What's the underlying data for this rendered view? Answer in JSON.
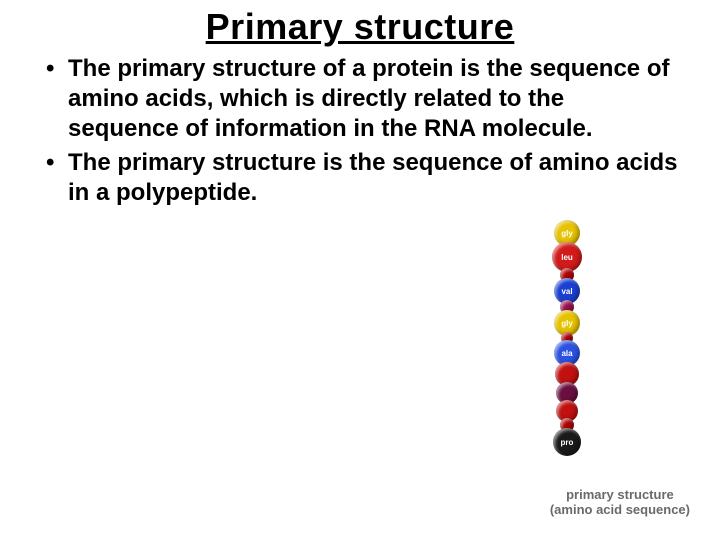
{
  "title": {
    "text": "Primary structure",
    "fontsize": 36,
    "color": "#000000"
  },
  "bullets": {
    "fontsize": 24,
    "color": "#000000",
    "items": [
      "The primary structure of a protein is the sequence of amino acids, which is directly related to the sequence of information in the RNA molecule.",
      "The primary structure is the sequence of amino acids in a polypeptide."
    ]
  },
  "figure": {
    "caption_line1": "primary structure",
    "caption_line2": "(amino acid sequence)",
    "caption_fontsize": 13,
    "caption_color": "#6a6a6a",
    "bead_label_fontsize": 8,
    "beads": [
      {
        "label": "gly",
        "color": "#e6c200",
        "size": 26
      },
      {
        "label": "leu",
        "color": "#d11a1a",
        "size": 30
      },
      {
        "label": "",
        "color": "#b00000",
        "size": 14
      },
      {
        "label": "val",
        "color": "#1a3fd1",
        "size": 26
      },
      {
        "label": "",
        "color": "#9a0f4f",
        "size": 14
      },
      {
        "label": "gly",
        "color": "#e6c200",
        "size": 26
      },
      {
        "label": "",
        "color": "#b00000",
        "size": 12
      },
      {
        "label": "ala",
        "color": "#2a52e0",
        "size": 26
      },
      {
        "label": "",
        "color": "#c01010",
        "size": 24
      },
      {
        "label": "",
        "color": "#6a0f3f",
        "size": 22
      },
      {
        "label": "",
        "color": "#c01010",
        "size": 22
      },
      {
        "label": "",
        "color": "#b00000",
        "size": 14
      },
      {
        "label": "pro",
        "color": "#1a1a1a",
        "size": 28
      }
    ]
  },
  "colors": {
    "background": "#ffffff"
  }
}
